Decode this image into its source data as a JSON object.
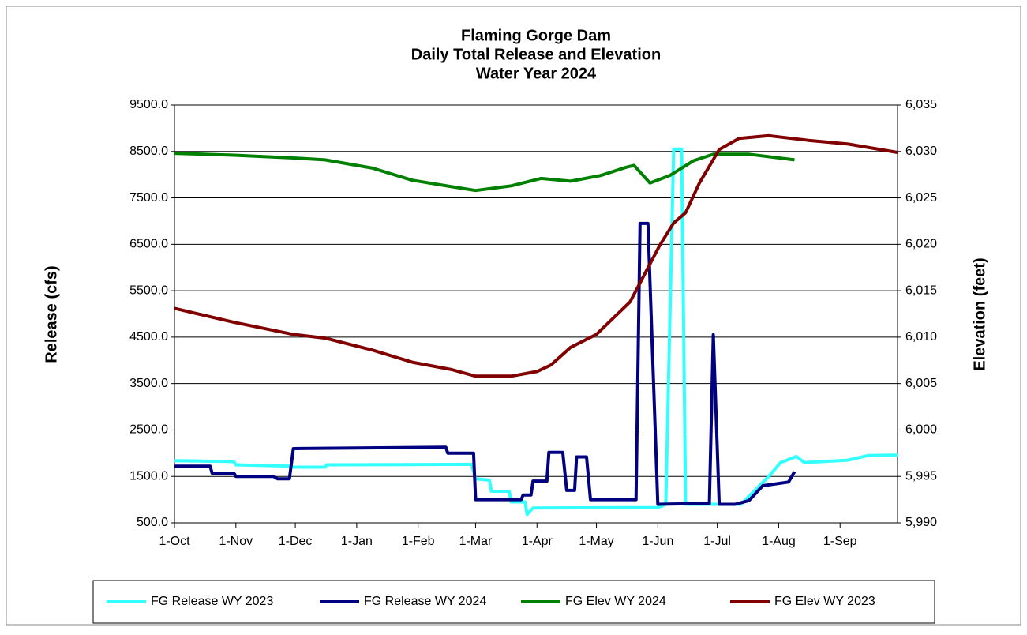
{
  "chart_data": {
    "type": "line",
    "title": [
      "Flaming Gorge Dam",
      "Daily Total Release and Elevation",
      "Water Year 2024"
    ],
    "y_label": "Release (cfs)",
    "y2_label": "Elevation (feet)",
    "xlim": [
      0,
      365
    ],
    "xticks": [
      {
        "value": 0,
        "label": "1-Oct"
      },
      {
        "value": 31,
        "label": "1-Nov"
      },
      {
        "value": 61,
        "label": "1-Dec"
      },
      {
        "value": 92,
        "label": "1-Jan"
      },
      {
        "value": 123,
        "label": "1-Feb"
      },
      {
        "value": 152,
        "label": "1-Mar"
      },
      {
        "value": 183,
        "label": "1-Apr"
      },
      {
        "value": 213,
        "label": "1-May"
      },
      {
        "value": 244,
        "label": "1-Jun"
      },
      {
        "value": 274,
        "label": "1-Jul"
      },
      {
        "value": 305,
        "label": "1-Aug"
      },
      {
        "value": 336,
        "label": "1-Sep"
      }
    ],
    "ylim": [
      500,
      9500
    ],
    "yticks": [
      {
        "value": 500,
        "label": "500.0"
      },
      {
        "value": 1500,
        "label": "1500.0"
      },
      {
        "value": 2500,
        "label": "2500.0"
      },
      {
        "value": 3500,
        "label": "3500.0"
      },
      {
        "value": 4500,
        "label": "4500.0"
      },
      {
        "value": 5500,
        "label": "5500.0"
      },
      {
        "value": 6500,
        "label": "6500.0"
      },
      {
        "value": 7500,
        "label": "7500.0"
      },
      {
        "value": 8500,
        "label": "8500.0"
      },
      {
        "value": 9500,
        "label": "9500.0"
      }
    ],
    "y2lim": [
      5990,
      6035
    ],
    "y2ticks": [
      {
        "value": 5990,
        "label": "5,990"
      },
      {
        "value": 5995,
        "label": "5,995"
      },
      {
        "value": 6000,
        "label": "6,000"
      },
      {
        "value": 6005,
        "label": "6,005"
      },
      {
        "value": 6010,
        "label": "6,010"
      },
      {
        "value": 6015,
        "label": "6,015"
      },
      {
        "value": 6020,
        "label": "6,020"
      },
      {
        "value": 6025,
        "label": "6,025"
      },
      {
        "value": 6030,
        "label": "6,030"
      },
      {
        "value": 6035,
        "label": "6,035"
      }
    ],
    "grid": true,
    "legend": "bottom",
    "series": [
      {
        "name": "FG Release WY 2023",
        "color": "#33ffff",
        "x": [
          0,
          30,
          31,
          59,
          60,
          76,
          77,
          150,
          152,
          159,
          160,
          169,
          170,
          177,
          178,
          181,
          244,
          248,
          252,
          256,
          258,
          286,
          300,
          306,
          314,
          318,
          340,
          350,
          365
        ],
        "values": [
          1840,
          1820,
          1750,
          1720,
          1700,
          1700,
          1750,
          1760,
          1450,
          1420,
          1180,
          1180,
          950,
          950,
          680,
          820,
          830,
          900,
          8550,
          8550,
          900,
          900,
          1500,
          1800,
          1930,
          1800,
          1850,
          1950,
          1960
        ]
      },
      {
        "name": "FG Release WY 2024",
        "color": "#000080",
        "x": [
          0,
          18,
          19,
          30,
          31,
          50,
          52,
          58,
          60,
          137,
          138,
          151,
          152,
          175,
          176,
          180,
          181,
          188,
          189,
          196,
          198,
          202,
          203,
          208,
          210,
          233,
          235,
          239,
          244,
          270,
          272,
          275,
          283,
          290,
          297,
          310,
          313
        ],
        "values": [
          1720,
          1720,
          1570,
          1570,
          1500,
          1500,
          1450,
          1450,
          2100,
          2130,
          2000,
          2000,
          1000,
          1000,
          1100,
          1100,
          1400,
          1400,
          2020,
          2020,
          1200,
          1200,
          1920,
          1920,
          1000,
          1000,
          6950,
          6950,
          900,
          920,
          4550,
          900,
          900,
          980,
          1300,
          1380,
          1600
        ]
      },
      {
        "name": "FG Elev WY 2024",
        "color": "#008000",
        "axis": "y2",
        "x": [
          0,
          30,
          60,
          76,
          100,
          120,
          140,
          152,
          170,
          185,
          200,
          215,
          228,
          232,
          240,
          250,
          262,
          272,
          290,
          313
        ],
        "values": [
          6029.8,
          6029.6,
          6029.3,
          6029.1,
          6028.2,
          6026.9,
          6026.2,
          6025.8,
          6026.3,
          6027.1,
          6026.8,
          6027.4,
          6028.3,
          6028.5,
          6026.6,
          6027.4,
          6029.0,
          6029.7,
          6029.7,
          6029.1
        ]
      },
      {
        "name": "FG Elev WY 2023",
        "color": "#800000",
        "axis": "y2",
        "x": [
          0,
          30,
          60,
          76,
          100,
          120,
          140,
          152,
          170,
          183,
          190,
          200,
          213,
          230,
          245,
          252,
          258,
          265,
          275,
          285,
          300,
          320,
          340,
          365
        ],
        "values": [
          6013.1,
          6011.6,
          6010.3,
          6009.9,
          6008.6,
          6007.3,
          6006.5,
          6005.8,
          6005.8,
          6006.3,
          6007.0,
          6008.9,
          6010.3,
          6013.8,
          6019.9,
          6022.3,
          6023.4,
          6026.6,
          6030.2,
          6031.4,
          6031.7,
          6031.2,
          6030.8,
          6029.9
        ]
      }
    ]
  }
}
